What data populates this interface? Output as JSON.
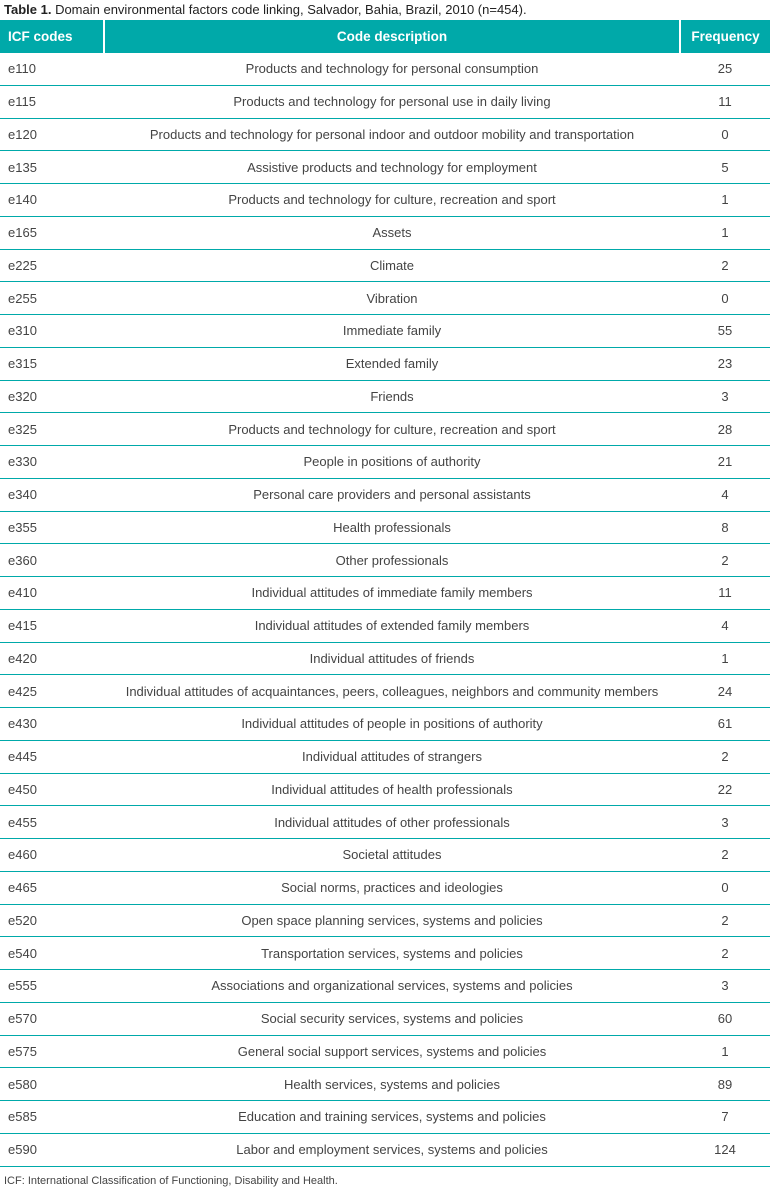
{
  "caption": {
    "label": "Table 1.",
    "text": " Domain environmental factors code linking, Salvador, Bahia, Brazil, 2010 (n=454)."
  },
  "headers": [
    "ICF codes",
    "Code description",
    "Frequency"
  ],
  "rows": [
    [
      "e110",
      "Products and technology for personal consumption",
      "25"
    ],
    [
      "e115",
      "Products and technology for personal use in daily living",
      "11"
    ],
    [
      "e120",
      "Products and technology for personal indoor and outdoor mobility and transportation",
      "0"
    ],
    [
      "e135",
      "Assistive products and technology for employment",
      "5"
    ],
    [
      "e140",
      "Products and technology for culture, recreation and sport",
      "1"
    ],
    [
      "e165",
      "Assets",
      "1"
    ],
    [
      "e225",
      "Climate",
      "2"
    ],
    [
      "e255",
      "Vibration",
      "0"
    ],
    [
      "e310",
      "Immediate family",
      "55"
    ],
    [
      "e315",
      "Extended family",
      "23"
    ],
    [
      "e320",
      "Friends",
      "3"
    ],
    [
      "e325",
      "Products and technology for culture, recreation and sport",
      "28"
    ],
    [
      "e330",
      "People in positions of authority",
      "21"
    ],
    [
      "e340",
      "Personal care providers and personal assistants",
      "4"
    ],
    [
      "e355",
      "Health professionals",
      "8"
    ],
    [
      "e360",
      "Other professionals",
      "2"
    ],
    [
      "e410",
      "Individual attitudes of immediate family members",
      "11"
    ],
    [
      "e415",
      "Individual attitudes of extended family members",
      "4"
    ],
    [
      "e420",
      "Individual attitudes of friends",
      "1"
    ],
    [
      "e425",
      "Individual attitudes of acquaintances, peers, colleagues, neighbors and community members",
      "24"
    ],
    [
      "e430",
      "Individual attitudes of people in positions of authority",
      "61"
    ],
    [
      "e445",
      "Individual attitudes of strangers",
      "2"
    ],
    [
      "e450",
      "Individual attitudes of health professionals",
      "22"
    ],
    [
      "e455",
      "Individual attitudes of other professionals",
      "3"
    ],
    [
      "e460",
      "Societal attitudes",
      "2"
    ],
    [
      "e465",
      "Social norms, practices and ideologies",
      "0"
    ],
    [
      "e520",
      "Open space planning services, systems and policies",
      "2"
    ],
    [
      "e540",
      "Transportation services, systems and policies",
      "2"
    ],
    [
      "e555",
      "Associations and organizational services, systems and policies",
      "3"
    ],
    [
      "e570",
      "Social security services, systems and policies",
      "60"
    ],
    [
      "e575",
      "General social support services, systems and policies",
      "1"
    ],
    [
      "e580",
      "Health services, systems and policies",
      "89"
    ],
    [
      "e585",
      "Education and training services, systems and policies",
      "7"
    ],
    [
      "e590",
      "Labor and employment services, systems and policies",
      "124"
    ]
  ],
  "footnote": "ICF: International Classification of Functioning, Disability and Health.",
  "colors": {
    "accent": "#00a9a9"
  }
}
